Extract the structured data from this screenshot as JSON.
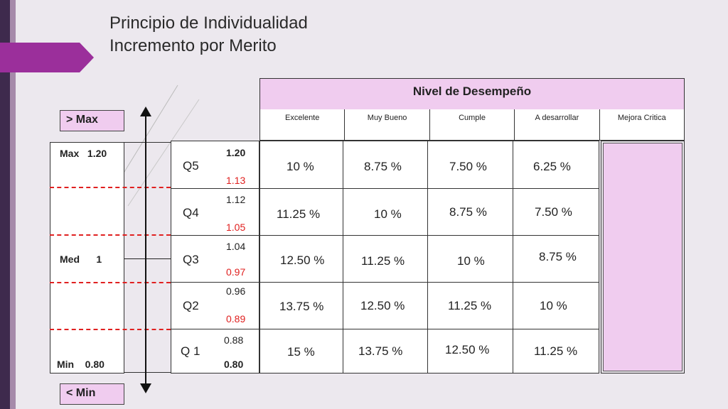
{
  "title": {
    "line1": "Principio de Individualidad",
    "line2": "Incremento por Merito"
  },
  "header": {
    "group_label": "Nivel de Desempeño",
    "levels": [
      "Excelente",
      "Muy Bueno",
      "Cumple",
      "A desarrollar",
      "Mejora Critica"
    ]
  },
  "range_labels": {
    "above_max": "> Max",
    "below_min": "< Min"
  },
  "scale": {
    "max": "Max   1.20",
    "med": "Med      1",
    "min": "Min    0.80"
  },
  "quartiles": [
    {
      "label": "Q5",
      "upper": "1.20",
      "lower": "1.13",
      "increments": [
        "10 %",
        "8.75 %",
        "7.50 %",
        "6.25 %"
      ]
    },
    {
      "label": "Q4",
      "upper": "1.12",
      "lower": "1.05",
      "increments": [
        "11.25 %",
        "10 %",
        "8.75 %",
        "7.50 %"
      ]
    },
    {
      "label": "Q3",
      "upper": "1.04",
      "lower": "0.97",
      "increments": [
        "12.50 %",
        "11.25 %",
        "10 %",
        "8.75 %"
      ]
    },
    {
      "label": "Q2",
      "upper": "0.96",
      "lower": "0.89",
      "increments": [
        "13.75 %",
        "12.50 %",
        "11.25 %",
        "10 %"
      ]
    },
    {
      "label": "Q 1",
      "upper": "0.88",
      "lower": "0.80",
      "increments": [
        "15 %",
        "13.75 %",
        "12.50 %",
        "11.25 %"
      ]
    }
  ],
  "colors": {
    "accent_purple": "#9b2f9b",
    "header_pink": "#f0ccef",
    "range_red": "#e0201f"
  }
}
